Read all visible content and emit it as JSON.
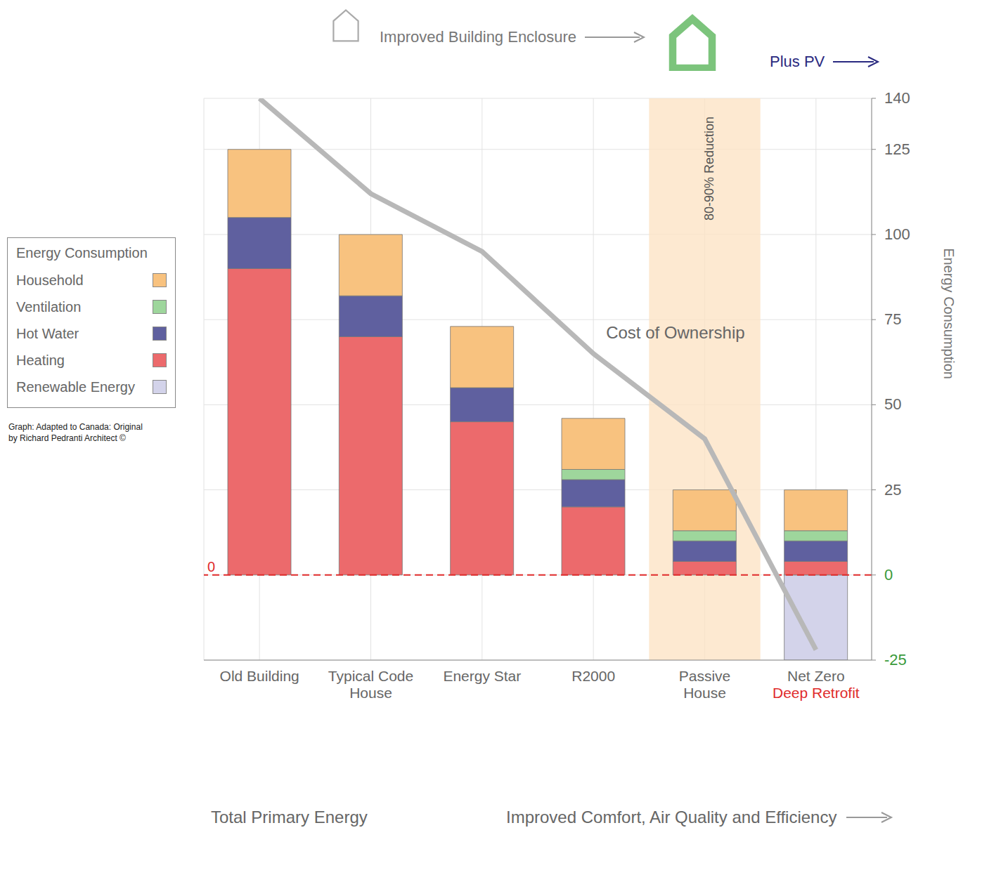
{
  "chart_data": {
    "type": "bar",
    "stacked": true,
    "header": "Improved Building Enclosure",
    "pv_label": "Plus PV",
    "categories": [
      "Old Building",
      "Typical Code House",
      "Energy Star",
      "R2000",
      "Passive House",
      "Net Zero"
    ],
    "category_notes": [
      null,
      null,
      null,
      null,
      null,
      "Deep Retrofit"
    ],
    "legend_title": "Energy Consumption",
    "legend": "left",
    "series": [
      {
        "name": "Household",
        "color": "#f8c27f",
        "values": [
          20,
          18,
          18,
          15,
          12,
          12
        ]
      },
      {
        "name": "Ventilation",
        "color": "#9ed69c",
        "values": [
          0,
          0,
          0,
          3,
          3,
          3
        ]
      },
      {
        "name": "Hot Water",
        "color": "#5f609f",
        "values": [
          15,
          12,
          10,
          8,
          6,
          6
        ]
      },
      {
        "name": "Heating",
        "color": "#ec6a6c",
        "values": [
          90,
          70,
          45,
          20,
          4,
          4
        ]
      },
      {
        "name": "Renewable Energy",
        "color": "#d3d3ea",
        "values": [
          0,
          0,
          0,
          0,
          0,
          -25
        ]
      }
    ],
    "cost_of_ownership": {
      "name": "Cost of Ownership",
      "color": "#b8b8b8",
      "values": [
        140,
        112,
        95,
        65,
        40,
        -22
      ]
    },
    "reduction_label": "80-90% Reduction",
    "y_label": "Energy Consumption",
    "x_label": "Improved Comfort, Air Quality and Efficiency",
    "total_label": "Total Primary Energy",
    "credit": "Graph: Adapted to Canada: Original by Richard Pedranti Architect ©",
    "zero_line": 0,
    "ylim": [
      -25,
      140
    ],
    "yticks": [
      -25,
      0,
      25,
      50,
      75,
      100,
      125,
      140
    ],
    "grid": true
  }
}
